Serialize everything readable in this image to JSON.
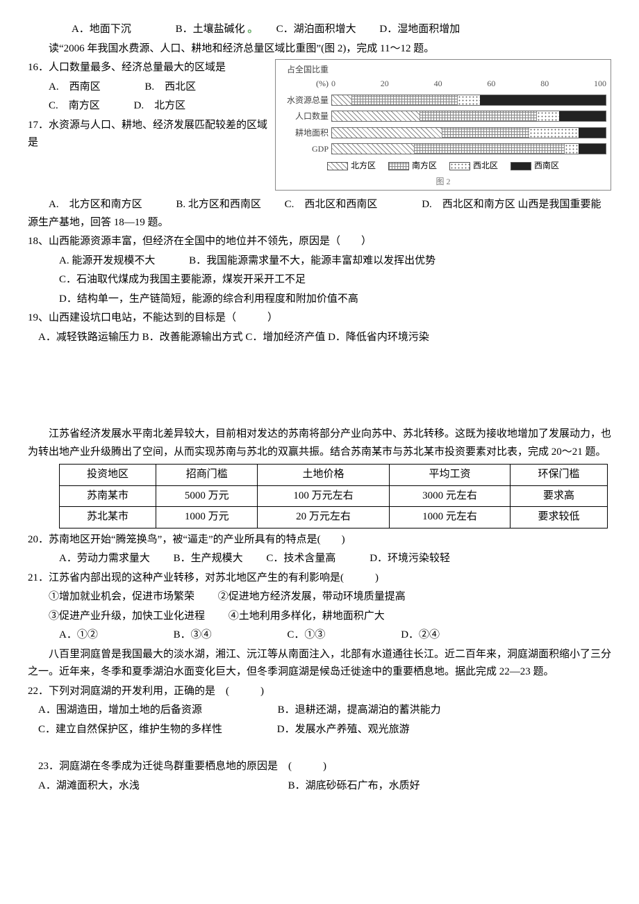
{
  "q15": {
    "indent": "　　　　",
    "optA": "A．地面下沉",
    "optB": "B．土壤盐碱化",
    "optC": "C．湖泊面积增大",
    "optD": "D．湿地面积增加"
  },
  "intro1112": "　　读“2006 年我国水费源、人口、耕地和经济总量区域比重图”(图 2)，完成 11～12 题。",
  "chart": {
    "axisLabel": "占全国比重(%)",
    "ticks": [
      "0",
      "20",
      "40",
      "60",
      "80",
      "100"
    ],
    "rows": [
      {
        "label": "水资源总量",
        "vals": {
          "north": 7,
          "south": 39,
          "nw": 8,
          "sw": 46
        }
      },
      {
        "label": "人口数量",
        "vals": {
          "north": 32,
          "south": 43,
          "nw": 8,
          "sw": 17
        }
      },
      {
        "label": "耕地面积",
        "vals": {
          "north": 40,
          "south": 32,
          "nw": 18,
          "sw": 10
        }
      },
      {
        "label": "GDP",
        "vals": {
          "north": 30,
          "south": 55,
          "nw": 5,
          "sw": 10
        }
      }
    ],
    "legend": {
      "north": "北方区",
      "south": "南方区",
      "nw": "西北区",
      "sw": "西南区"
    },
    "caption": "图 2"
  },
  "q16": {
    "stem": "16．人口数量最多、经济总量最大的区域是",
    "optA": "A.　西南区",
    "optB": "B.　西北区",
    "optC": "C.　南方区",
    "optD": "D.　北方区"
  },
  "q17": {
    "stem": "17．水资源与人口、耕地、经济发展匹配较差的区域是",
    "optA": "A.　北方区和南方区",
    "optB": "B. 北方区和西南区",
    "optC": "C.　西北区和西南区",
    "optD": "D.　西北区和南方区"
  },
  "intro1819": "山西是我国重要能源生产基地，回答 18—19 题。",
  "q18": {
    "stem": "18、山西能源资源丰富，但经济在全国中的地位并不领先，原因是（　　）",
    "optA": "A. 能源开发规模不大",
    "optB": "B．我国能源需求量不大，能源丰富却难以发挥出优势",
    "optC": "C．石油取代煤成为我国主要能源，煤炭开采开工不足",
    "optD": "D．结构单一，生产链简短，能源的综合利用程度和附加价值不高"
  },
  "q19": {
    "stem": "19、山西建设坑口电站，不能达到的目标是（　　　）",
    "optsLine": "　A．减轻铁路运输压力 B．改善能源输出方式 C．增加经济产值 D．降低省内环境污染"
  },
  "intro2021a": "　　江苏省经济发展水平南北差异较大，目前相对发达的苏南将部分产业向苏中、苏北转移。这既为接收地增加了发展动力，也为转出地产业升级腾出了空间，从而实现苏南与苏北的双赢共振。结合苏南某市与苏北某市投资要素对比表，完成 20～21 题。",
  "table": {
    "headers": [
      "投资地区",
      "招商门槛",
      "土地价格",
      "平均工资",
      "环保门槛"
    ],
    "rows": [
      [
        "苏南某市",
        "5000 万元",
        "100 万元左右",
        "3000 元左右",
        "要求高"
      ],
      [
        "苏北某市",
        "1000 万元",
        "20 万元左右",
        "1000 元左右",
        "要求较低"
      ]
    ]
  },
  "q20": {
    "stem": "20．苏南地区开始“腾笼换鸟”，被“逼走”的产业所具有的特点是(　　)",
    "optA": "A．劳动力需求量大",
    "optB": "B．生产规模大",
    "optC": "C．技术含量高",
    "optD": "D．环境污染较轻"
  },
  "q21": {
    "stem": "21．江苏省内部出现的这种产业转移，对苏北地区产生的有利影响是(　　　)",
    "s1": "①增加就业机会，促进市场繁荣",
    "s2": "②促进地方经济发展，带动环境质量提高",
    "s3": "③促进产业升级，加快工业化进程",
    "s4": "④土地利用多样化，耕地面积广大",
    "optA": "A．①②",
    "optB": "B．③④",
    "optC": "C．①③",
    "optD": "D．②④"
  },
  "intro2223": "　　八百里洞庭曾是我国最大的淡水湖，湘江、沅江等从南面注入，北部有水道通往长江。近二百年来，洞庭湖面积缩小了三分之一。近年来，冬季和夏季湖泊水面变化巨大，但冬季洞庭湖是候岛迁徙途中的重要栖息地。据此完成 22—23 题。",
  "q22": {
    "stem": "22．下列对洞庭湖的开发利用，正确的是　(　　　)",
    "optA": "A．围湖造田，增加土地的后备资源",
    "optB": "B．退耕还湖，提高湖泊的蓄洪能力",
    "optC": "C．建立自然保护区，维护生物的多样性",
    "optD": "D．发展水产养殖、观光旅游"
  },
  "q23": {
    "stem": "23．洞庭湖在冬季成为迁徙鸟群重要栖息地的原因是　(　　　)",
    "optA": "A．湖滩面积大，水浅",
    "optB": "B．湖底砂砾石广布，水质好"
  }
}
